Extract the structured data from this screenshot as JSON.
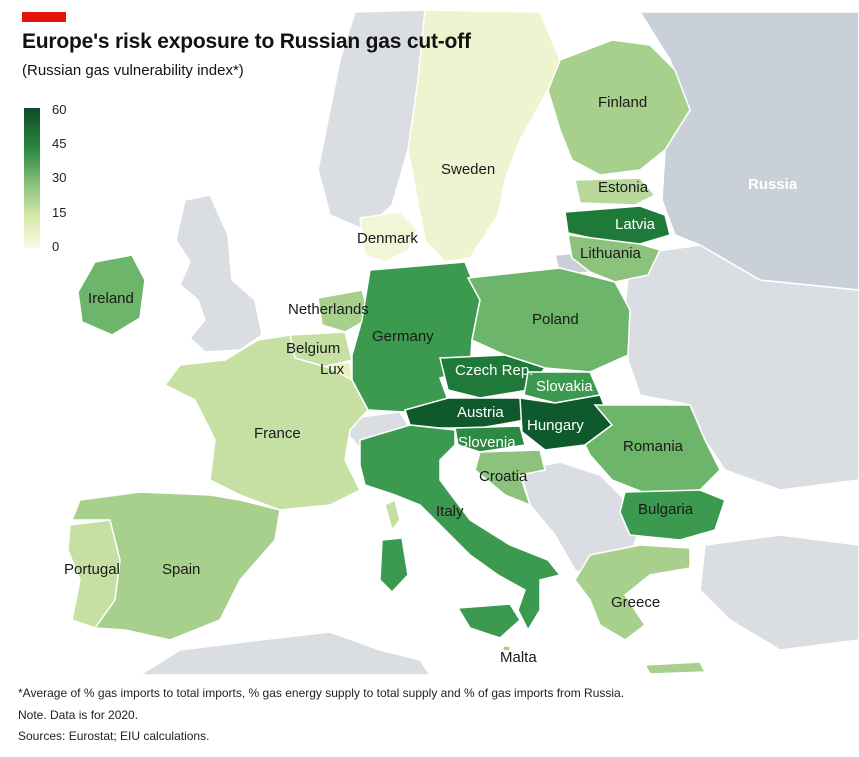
{
  "title": "Europe's risk exposure to Russian gas cut-off",
  "subtitle": "(Russian gas vulnerability index*)",
  "legend": {
    "ticks": [
      "60",
      "45",
      "30",
      "15",
      "0"
    ],
    "min": 0,
    "max": 60
  },
  "countries": {
    "russia": "Russia",
    "finland": "Finland",
    "sweden": "Sweden",
    "estonia": "Estonia",
    "latvia": "Latvia",
    "lithuania": "Lithuania",
    "denmark": "Denmark",
    "ireland": "Ireland",
    "netherlands": "Netherlands",
    "belgium": "Belgium",
    "lux": "Lux",
    "germany": "Germany",
    "poland": "Poland",
    "czech": "Czech Rep.",
    "slovakia": "Slovakia",
    "austria": "Austria",
    "hungary": "Hungary",
    "slovenia": "Slovenia",
    "croatia": "Croatia",
    "romania": "Romania",
    "bulgaria": "Bulgaria",
    "france": "France",
    "italy": "Italy",
    "portugal": "Portugal",
    "spain": "Spain",
    "greece": "Greece",
    "malta": "Malta"
  },
  "colors": {
    "sea": "#ffffff",
    "non_eu_land": "#dadee3",
    "russia_land": "#c9d0d8",
    "scale": [
      "#fafae0",
      "#d7eaab",
      "#a8d08d",
      "#6db56a",
      "#3b9a50",
      "#1f7a3a",
      "#0f5a2d"
    ]
  },
  "footnotes": {
    "note1": "*Average of % gas imports to total imports, % gas energy supply to total supply and % of gas imports from Russia.",
    "note2": "Note. Data is for 2020.",
    "sources": "Sources: Eurostat; EIU calculations."
  }
}
